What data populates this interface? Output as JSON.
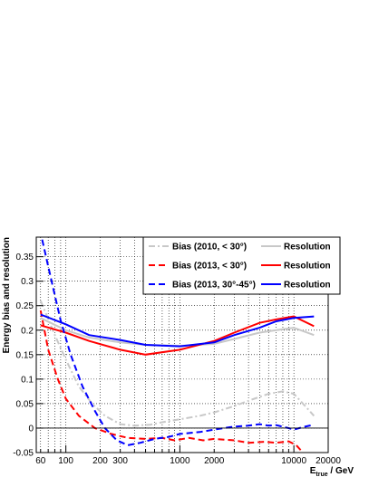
{
  "chart_data": {
    "type": "line",
    "title": "",
    "xlabel": "E_true / GeV",
    "xlabel_main": "E",
    "xlabel_sub": "true",
    "xlabel_unit": " / GeV",
    "ylabel": "Energy bias and resolution",
    "x_scale": "log",
    "xlim": [
      55,
      20000
    ],
    "ylim": [
      -0.05,
      0.39
    ],
    "x_ticks": [
      60,
      100,
      200,
      300,
      1000,
      2000,
      10000,
      20000
    ],
    "x_tick_labels": [
      "60",
      "100",
      "200",
      "300",
      "1000",
      "2000",
      "10000",
      "20000"
    ],
    "y_ticks": [
      -0.05,
      0,
      0.05,
      0.1,
      0.15,
      0.2,
      0.25,
      0.3,
      0.35
    ],
    "y_tick_labels": [
      "-0.05",
      "0",
      "0.05",
      "0.1",
      "0.15",
      "0.2",
      "0.25",
      "0.3",
      "0.35"
    ],
    "grid": true,
    "legend_position": "top-right",
    "legend": [
      {
        "label": "Bias (2010, < 30°)",
        "color": "#c8c8c8",
        "dash": "dashdot"
      },
      {
        "label": "Resolution",
        "color": "#c8c8c8",
        "dash": "solid"
      },
      {
        "label": "Bias (2013, < 30°)",
        "color": "#ff0000",
        "dash": "dash"
      },
      {
        "label": "Resolution",
        "color": "#ff0000",
        "dash": "solid"
      },
      {
        "label": "Bias (2013, 30°-45°)",
        "color": "#0000ff",
        "dash": "dash"
      },
      {
        "label": "Resolution",
        "color": "#0000ff",
        "dash": "solid"
      }
    ],
    "series": [
      {
        "color": "#c8c8c8",
        "dash": "dashdot",
        "x": [
          60,
          80,
          100,
          130,
          170,
          220,
          300,
          400,
          550,
          700,
          1000,
          1500,
          2000,
          3000,
          4500,
          6000,
          8000,
          10000,
          12000,
          15000
        ],
        "y": [
          0.26,
          0.19,
          0.14,
          0.085,
          0.05,
          0.025,
          0.008,
          0.005,
          0.007,
          0.012,
          0.018,
          0.025,
          0.032,
          0.045,
          0.06,
          0.07,
          0.075,
          0.07,
          0.05,
          0.025
        ]
      },
      {
        "color": "#c8c8c8",
        "dash": "solid",
        "x": [
          60,
          100,
          160,
          300,
          500,
          1000,
          2000,
          3000,
          5000,
          7000,
          10000,
          15000
        ],
        "y": [
          0.225,
          0.2,
          0.185,
          0.175,
          0.17,
          0.168,
          0.172,
          0.182,
          0.195,
          0.2,
          0.205,
          0.19
        ]
      },
      {
        "color": "#ff0000",
        "dash": "dash",
        "x": [
          60,
          70,
          85,
          100,
          130,
          180,
          250,
          350,
          500,
          700,
          900,
          1200,
          1600,
          2000,
          3000,
          4000,
          5500,
          7000,
          9000,
          10500,
          12000
        ],
        "y": [
          0.24,
          0.16,
          0.1,
          0.06,
          0.025,
          0.0,
          -0.012,
          -0.02,
          -0.022,
          -0.02,
          -0.025,
          -0.02,
          -0.025,
          -0.022,
          -0.025,
          -0.03,
          -0.028,
          -0.03,
          -0.027,
          -0.035,
          -0.05
        ]
      },
      {
        "color": "#ff0000",
        "dash": "solid",
        "x": [
          60,
          100,
          160,
          300,
          500,
          1000,
          2000,
          3000,
          5000,
          7000,
          10000,
          15000
        ],
        "y": [
          0.21,
          0.195,
          0.178,
          0.16,
          0.15,
          0.16,
          0.178,
          0.195,
          0.215,
          0.222,
          0.228,
          0.208
        ]
      },
      {
        "color": "#0000ff",
        "dash": "dash",
        "x": [
          62,
          75,
          90,
          110,
          140,
          180,
          220,
          280,
          350,
          450,
          600,
          800,
          1000,
          1500,
          2000,
          3000,
          4000,
          5000,
          6000,
          7000,
          9000,
          10000,
          12000,
          15000
        ],
        "y": [
          0.385,
          0.3,
          0.22,
          0.15,
          0.085,
          0.035,
          0.0,
          -0.025,
          -0.035,
          -0.03,
          -0.022,
          -0.018,
          -0.012,
          -0.008,
          -0.003,
          0.003,
          0.005,
          0.008,
          0.005,
          0.006,
          0.0,
          -0.003,
          0.002,
          0.007
        ]
      },
      {
        "color": "#0000ff",
        "dash": "solid",
        "x": [
          60,
          100,
          160,
          300,
          500,
          1000,
          2000,
          3000,
          5000,
          7000,
          10000,
          15000
        ],
        "y": [
          0.232,
          0.212,
          0.19,
          0.18,
          0.17,
          0.167,
          0.175,
          0.19,
          0.205,
          0.218,
          0.225,
          0.228
        ]
      }
    ]
  }
}
